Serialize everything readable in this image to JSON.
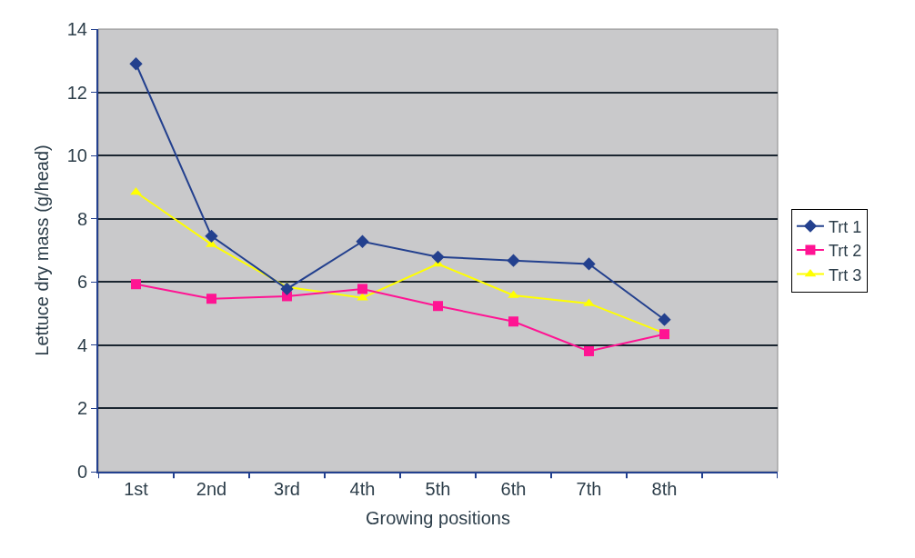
{
  "chart_data": {
    "type": "line",
    "xlabel": "Growing positions",
    "ylabel": "Lettuce dry mass (g/head)",
    "categories": [
      "1st",
      "2nd",
      "3rd",
      "4th",
      "5th",
      "6th",
      "7th",
      "8th",
      null
    ],
    "series": [
      {
        "name": "Trt 1",
        "color": "#23408e",
        "marker": "diamond",
        "values": [
          12.9,
          7.45,
          5.78,
          7.28,
          6.79,
          6.68,
          6.57,
          4.81,
          null
        ]
      },
      {
        "name": "Trt 2",
        "color": "#ff1493",
        "marker": "square",
        "values": [
          5.93,
          5.47,
          5.55,
          5.78,
          5.24,
          4.75,
          3.81,
          4.35,
          null
        ]
      },
      {
        "name": "Trt 3",
        "color": "#ffff00",
        "marker": "triangle",
        "values": [
          8.84,
          7.19,
          5.84,
          5.5,
          6.57,
          5.58,
          5.32,
          4.38,
          null
        ]
      }
    ],
    "ylim": [
      0,
      14
    ],
    "yticks": [
      0,
      2,
      4,
      6,
      8,
      10,
      12,
      14
    ],
    "grid": "y",
    "legend": "right"
  }
}
